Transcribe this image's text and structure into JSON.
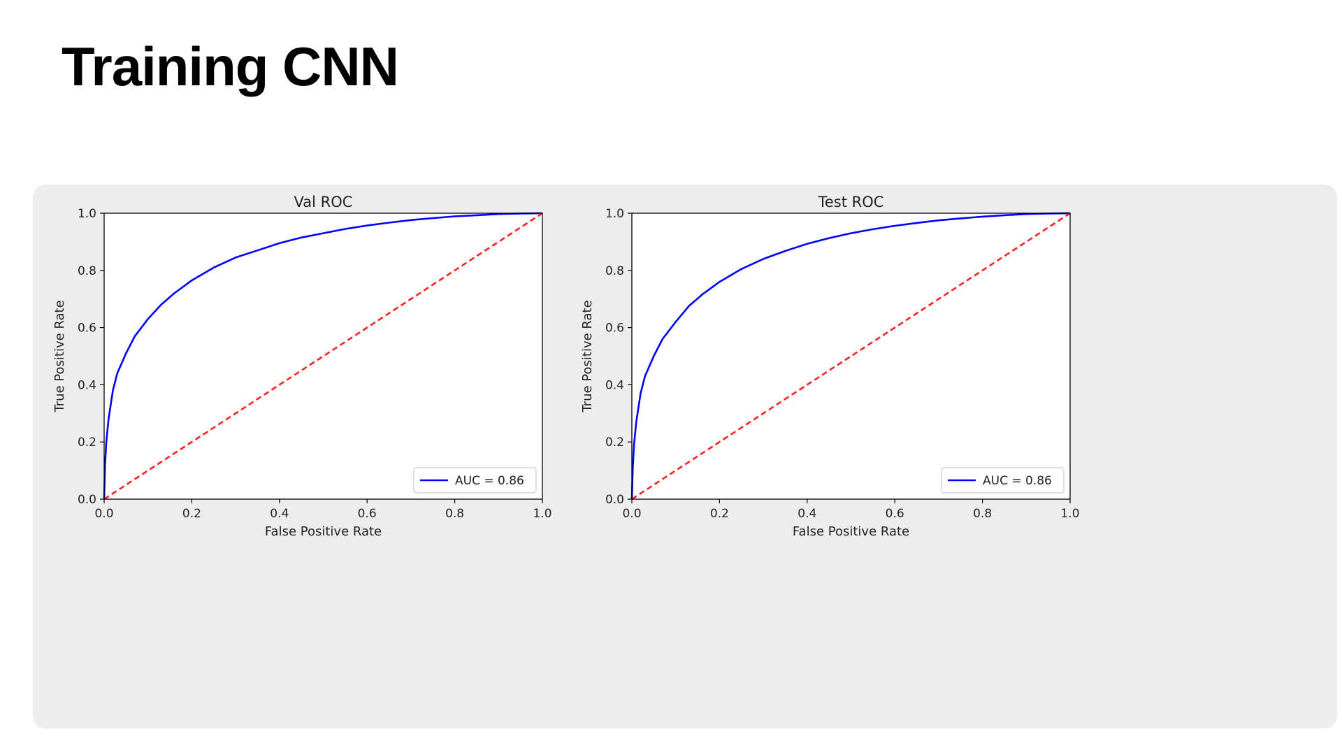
{
  "page": {
    "title": "Training CNN"
  },
  "chart_data": [
    {
      "type": "line",
      "title": "Val ROC",
      "xlabel": "False Positive Rate",
      "ylabel": "True Positive Rate",
      "xlim": [
        0,
        1
      ],
      "ylim": [
        0,
        1
      ],
      "xticks": [
        "0.0",
        "0.2",
        "0.4",
        "0.6",
        "0.8",
        "1.0"
      ],
      "yticks": [
        "0.0",
        "0.2",
        "0.4",
        "0.6",
        "0.8",
        "1.0"
      ],
      "grid": false,
      "legend_position": "lower-right",
      "series": [
        {
          "name": "AUC = 0.86",
          "color": "#0000ff",
          "style": "solid",
          "x": [
            0,
            0.002,
            0.005,
            0.01,
            0.02,
            0.03,
            0.05,
            0.07,
            0.1,
            0.13,
            0.16,
            0.2,
            0.25,
            0.3,
            0.35,
            0.4,
            0.45,
            0.5,
            0.55,
            0.6,
            0.65,
            0.7,
            0.75,
            0.8,
            0.85,
            0.9,
            0.95,
            1.0
          ],
          "y": [
            0,
            0.12,
            0.2,
            0.28,
            0.38,
            0.44,
            0.51,
            0.57,
            0.63,
            0.68,
            0.72,
            0.765,
            0.81,
            0.845,
            0.87,
            0.895,
            0.915,
            0.93,
            0.945,
            0.957,
            0.967,
            0.976,
            0.983,
            0.989,
            0.993,
            0.997,
            0.999,
            1.0
          ]
        },
        {
          "color": "#ff2020",
          "style": "dashed",
          "x": [
            0,
            1
          ],
          "y": [
            0,
            1
          ]
        }
      ]
    },
    {
      "type": "line",
      "title": "Test ROC",
      "xlabel": "False Positive Rate",
      "ylabel": "True Positive Rate",
      "xlim": [
        0,
        1
      ],
      "ylim": [
        0,
        1
      ],
      "xticks": [
        "0.0",
        "0.2",
        "0.4",
        "0.6",
        "0.8",
        "1.0"
      ],
      "yticks": [
        "0.0",
        "0.2",
        "0.4",
        "0.6",
        "0.8",
        "1.0"
      ],
      "grid": false,
      "legend_position": "lower-right",
      "series": [
        {
          "name": "AUC = 0.86",
          "color": "#0000ff",
          "style": "solid",
          "x": [
            0,
            0.002,
            0.005,
            0.01,
            0.02,
            0.03,
            0.05,
            0.07,
            0.1,
            0.13,
            0.16,
            0.2,
            0.25,
            0.3,
            0.35,
            0.4,
            0.45,
            0.5,
            0.55,
            0.6,
            0.65,
            0.7,
            0.75,
            0.8,
            0.85,
            0.9,
            0.95,
            1.0
          ],
          "y": [
            0,
            0.11,
            0.19,
            0.27,
            0.37,
            0.43,
            0.5,
            0.56,
            0.62,
            0.675,
            0.715,
            0.76,
            0.805,
            0.84,
            0.868,
            0.893,
            0.913,
            0.93,
            0.944,
            0.956,
            0.966,
            0.975,
            0.982,
            0.988,
            0.993,
            0.997,
            0.999,
            1.0
          ]
        },
        {
          "color": "#ff2020",
          "style": "dashed",
          "x": [
            0,
            1
          ],
          "y": [
            0,
            1
          ]
        }
      ]
    }
  ]
}
